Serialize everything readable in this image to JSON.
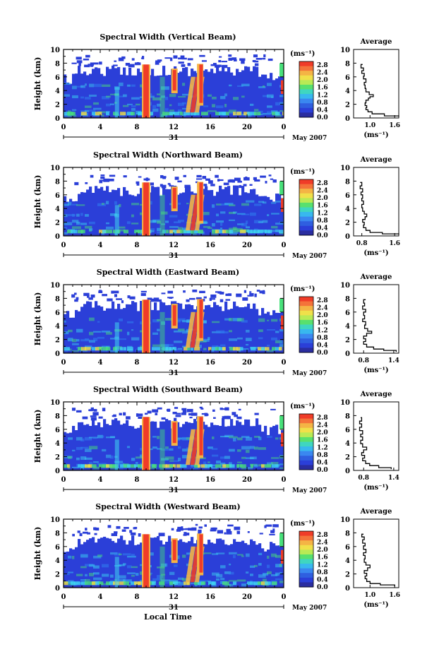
{
  "chart_data": [
    {
      "type": "heatmap",
      "title": "Spectral Width (Vertical Beam)",
      "ylabel": "Height (km)",
      "ylim": [
        0,
        10
      ],
      "yticks": [
        "0",
        "2",
        "4",
        "6",
        "8",
        "10"
      ],
      "xlim": [
        0,
        24
      ],
      "xticks": [
        "0",
        "4",
        "8",
        "12",
        "16",
        "20",
        "0"
      ],
      "colorbar": {
        "unit": "(ms⁻¹)",
        "ticks": [
          "2.8",
          "2.4",
          "2.0",
          "1.6",
          "1.2",
          "0.8",
          "0.4",
          "0.0"
        ]
      },
      "date": {
        "day": "31",
        "month": "May 2007"
      },
      "average": {
        "title": "Average",
        "xlabel": "(ms⁻¹)",
        "xticks": [
          "1.0",
          "1.6"
        ],
        "xlim": [
          0.6,
          1.7
        ],
        "ylim": [
          0,
          10
        ],
        "yticks": [
          "0",
          "2",
          "4",
          "6",
          "8",
          "10"
        ],
        "profile": [
          [
            1.7,
            0.2
          ],
          [
            1.35,
            0.3
          ],
          [
            1.05,
            0.6
          ],
          [
            0.95,
            0.9
          ],
          [
            0.9,
            1.2
          ],
          [
            0.92,
            1.5
          ],
          [
            0.88,
            1.8
          ],
          [
            0.9,
            2.2
          ],
          [
            0.96,
            2.6
          ],
          [
            1.0,
            2.9
          ],
          [
            1.08,
            3.1
          ],
          [
            0.98,
            3.4
          ],
          [
            0.9,
            3.8
          ],
          [
            0.88,
            4.3
          ],
          [
            0.86,
            4.8
          ],
          [
            0.9,
            5.2
          ],
          [
            0.84,
            5.7
          ],
          [
            0.86,
            6.1
          ],
          [
            0.8,
            6.5
          ],
          [
            0.84,
            6.9
          ],
          [
            0.78,
            7.3
          ],
          [
            0.82,
            7.8
          ]
        ]
      }
    },
    {
      "type": "heatmap",
      "title": "Spectral Width (Northward Beam)",
      "ylabel": "Height (km)",
      "ylim": [
        0,
        10
      ],
      "yticks": [
        "0",
        "2",
        "4",
        "6",
        "8",
        "10"
      ],
      "xlim": [
        0,
        24
      ],
      "xticks": [
        "0",
        "4",
        "8",
        "12",
        "16",
        "20",
        "0"
      ],
      "colorbar": {
        "unit": "(ms⁻¹)",
        "ticks": [
          "2.8",
          "2.4",
          "2.0",
          "1.6",
          "1.2",
          "0.8",
          "0.4",
          "0.0"
        ]
      },
      "date": {
        "day": "31",
        "month": "May 2007"
      },
      "average": {
        "title": "Average",
        "xlabel": "(ms⁻¹)",
        "xticks": [
          "0.8",
          "1.6"
        ],
        "xlim": [
          0.6,
          1.7
        ],
        "ylim": [
          0,
          10
        ],
        "yticks": [
          "0",
          "2",
          "4",
          "6",
          "8",
          "10"
        ],
        "profile": [
          [
            1.7,
            0.2
          ],
          [
            1.3,
            0.3
          ],
          [
            1.0,
            0.5
          ],
          [
            0.9,
            0.8
          ],
          [
            0.84,
            1.2
          ],
          [
            0.86,
            1.6
          ],
          [
            0.82,
            2.0
          ],
          [
            0.88,
            2.4
          ],
          [
            0.92,
            2.8
          ],
          [
            0.86,
            3.2
          ],
          [
            0.82,
            3.6
          ],
          [
            0.8,
            4.1
          ],
          [
            0.84,
            4.6
          ],
          [
            0.8,
            5.1
          ],
          [
            0.82,
            5.5
          ],
          [
            0.78,
            6.0
          ],
          [
            0.82,
            6.4
          ],
          [
            0.76,
            6.9
          ],
          [
            0.8,
            7.3
          ],
          [
            0.76,
            7.8
          ]
        ]
      }
    },
    {
      "type": "heatmap",
      "title": "Spectral Width (Eastward Beam)",
      "ylabel": "Height (km)",
      "ylim": [
        0,
        10
      ],
      "yticks": [
        "0",
        "2",
        "4",
        "6",
        "8",
        "10"
      ],
      "xlim": [
        0,
        24
      ],
      "xticks": [
        "0",
        "4",
        "8",
        "12",
        "16",
        "20",
        "0"
      ],
      "colorbar": {
        "unit": "(ms⁻¹)",
        "ticks": [
          "2.8",
          "2.4",
          "2.0",
          "1.6",
          "1.2",
          "0.8",
          "0.4",
          "0.0"
        ]
      },
      "date": {
        "day": "31",
        "month": "May 2007"
      },
      "average": {
        "title": "Average",
        "xlabel": "(ms⁻¹)",
        "xticks": [
          "0.8",
          "1.4"
        ],
        "xlim": [
          0.6,
          1.5
        ],
        "ylim": [
          0,
          10
        ],
        "yticks": [
          "0",
          "2",
          "4",
          "6",
          "8",
          "10"
        ],
        "profile": [
          [
            1.45,
            0.2
          ],
          [
            1.2,
            0.4
          ],
          [
            1.0,
            0.6
          ],
          [
            0.86,
            0.9
          ],
          [
            0.8,
            1.3
          ],
          [
            0.84,
            1.7
          ],
          [
            0.8,
            2.1
          ],
          [
            0.86,
            2.5
          ],
          [
            0.96,
            2.9
          ],
          [
            0.88,
            3.2
          ],
          [
            0.82,
            3.6
          ],
          [
            0.84,
            4.1
          ],
          [
            0.78,
            4.6
          ],
          [
            0.82,
            5.0
          ],
          [
            0.8,
            5.5
          ],
          [
            0.84,
            6.0
          ],
          [
            0.78,
            6.4
          ],
          [
            0.82,
            6.9
          ],
          [
            0.8,
            7.3
          ],
          [
            0.84,
            7.8
          ]
        ]
      }
    },
    {
      "type": "heatmap",
      "title": "Spectral Width (Southward Beam)",
      "ylabel": "Height (km)",
      "ylim": [
        0,
        10
      ],
      "yticks": [
        "0",
        "2",
        "4",
        "6",
        "8",
        "10"
      ],
      "xlim": [
        0,
        24
      ],
      "xticks": [
        "0",
        "4",
        "8",
        "12",
        "16",
        "20",
        "0"
      ],
      "colorbar": {
        "unit": "(ms⁻¹)",
        "ticks": [
          "2.8",
          "2.4",
          "2.0",
          "1.6",
          "1.2",
          "0.8",
          "0.4",
          "0.0"
        ]
      },
      "date": {
        "day": "31",
        "month": "May 2007"
      },
      "average": {
        "title": "Average",
        "xlabel": "(ms⁻¹)",
        "xticks": [
          "0.8",
          "1.4"
        ],
        "xlim": [
          0.6,
          1.5
        ],
        "ylim": [
          0,
          10
        ],
        "yticks": [
          "0",
          "2",
          "4",
          "6",
          "8",
          "10"
        ],
        "profile": [
          [
            1.35,
            0.2
          ],
          [
            1.1,
            0.4
          ],
          [
            0.92,
            0.7
          ],
          [
            0.84,
            1.0
          ],
          [
            0.78,
            1.4
          ],
          [
            0.82,
            1.8
          ],
          [
            0.76,
            2.2
          ],
          [
            0.8,
            2.6
          ],
          [
            0.86,
            3.0
          ],
          [
            0.78,
            3.4
          ],
          [
            0.74,
            3.9
          ],
          [
            0.78,
            4.4
          ],
          [
            0.74,
            4.9
          ],
          [
            0.78,
            5.3
          ],
          [
            0.72,
            5.8
          ],
          [
            0.76,
            6.3
          ],
          [
            0.72,
            6.8
          ],
          [
            0.76,
            7.2
          ],
          [
            0.74,
            7.7
          ]
        ]
      }
    },
    {
      "type": "heatmap",
      "title": "Spectral Width (Westward Beam)",
      "ylabel": "Height (km)",
      "ylim": [
        0,
        10
      ],
      "yticks": [
        "0",
        "2",
        "4",
        "6",
        "8",
        "10"
      ],
      "xlim": [
        0,
        24
      ],
      "xticks": [
        "0",
        "4",
        "8",
        "12",
        "16",
        "20",
        "0"
      ],
      "xlabel": "Local Time",
      "colorbar": {
        "unit": "(ms⁻¹)",
        "ticks": [
          "2.8",
          "2.4",
          "2.0",
          "1.6",
          "1.2",
          "0.8",
          "0.4",
          "0.0"
        ]
      },
      "date": {
        "day": "31",
        "month": "May 2007"
      },
      "average": {
        "title": "Average",
        "xlabel": "(ms⁻¹)",
        "xticks": [
          "1.0",
          "1.6"
        ],
        "xlim": [
          0.6,
          1.7
        ],
        "ylim": [
          0,
          10
        ],
        "yticks": [
          "0",
          "2",
          "4",
          "6",
          "8",
          "10"
        ],
        "profile": [
          [
            1.6,
            0.2
          ],
          [
            1.25,
            0.4
          ],
          [
            1.0,
            0.6
          ],
          [
            0.92,
            0.9
          ],
          [
            0.88,
            1.3
          ],
          [
            0.92,
            1.7
          ],
          [
            0.86,
            2.1
          ],
          [
            0.94,
            2.5
          ],
          [
            1.0,
            2.9
          ],
          [
            0.9,
            3.3
          ],
          [
            0.86,
            3.7
          ],
          [
            0.88,
            4.2
          ],
          [
            0.84,
            4.7
          ],
          [
            0.9,
            5.1
          ],
          [
            0.84,
            5.6
          ],
          [
            0.88,
            6.1
          ],
          [
            0.82,
            6.5
          ],
          [
            0.86,
            7.0
          ],
          [
            0.8,
            7.4
          ],
          [
            0.84,
            7.8
          ]
        ]
      }
    }
  ],
  "colors": {
    "background_blue": "#2b3fd8",
    "cyan": "#3fd6f2",
    "green": "#48e07a",
    "yellow": "#f4e040",
    "red": "#f03c28"
  }
}
